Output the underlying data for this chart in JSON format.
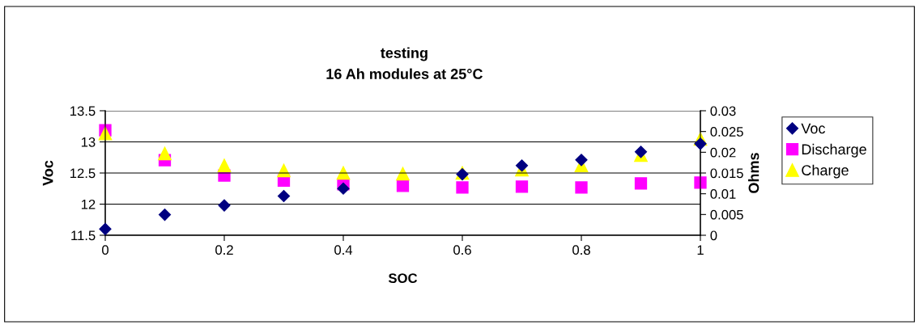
{
  "chart_data": {
    "type": "scatter",
    "title": "testing",
    "subtitle": "16 Ah modules at 25°C",
    "xlabel": "SOC",
    "ylabel": "Voc",
    "y2label": "Ohms",
    "xlim": [
      0,
      1
    ],
    "xticks": [
      0,
      0.2,
      0.4,
      0.6,
      0.8,
      1
    ],
    "ylim": [
      11.5,
      13.5
    ],
    "yticks": [
      11.5,
      12,
      12.5,
      13,
      13.5
    ],
    "y2lim": [
      0,
      0.03
    ],
    "y2ticks": [
      0,
      0.005,
      0.01,
      0.015,
      0.02,
      0.025,
      0.03
    ],
    "grid": "y",
    "legend": "right",
    "x": [
      0,
      0.1,
      0.2,
      0.3,
      0.4,
      0.5,
      0.6,
      0.7,
      0.8,
      0.9,
      1
    ],
    "series": [
      {
        "name": "Voc",
        "color": "#000080",
        "marker": "diamond",
        "values": [
          11.6,
          11.83,
          11.98,
          12.13,
          12.25,
          null,
          12.48,
          12.62,
          12.71,
          12.84,
          12.97
        ]
      },
      {
        "name": "Discharge",
        "color": "#ff00ff",
        "marker": "square",
        "axis": "y2",
        "values": [
          0.0253,
          0.0181,
          0.0144,
          0.0132,
          0.0123,
          0.0119,
          0.0115,
          0.0117,
          0.0115,
          0.0125,
          0.0127
        ]
      },
      {
        "name": "Charge",
        "color": "#ffff00",
        "marker": "triangle",
        "axis": "y2",
        "values": [
          0.0245,
          0.0197,
          0.0168,
          0.0156,
          0.015,
          0.0148,
          0.015,
          0.0158,
          0.0168,
          0.0193,
          0.0232
        ]
      }
    ]
  }
}
